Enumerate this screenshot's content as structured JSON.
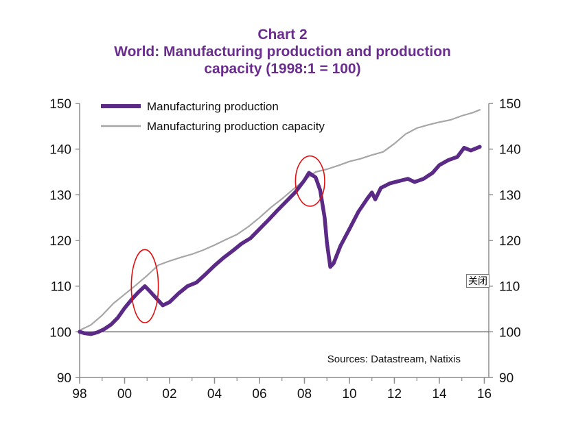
{
  "colors": {
    "title": "#6a2c8e",
    "production": "#5b2a86",
    "capacity": "#a6a6a6",
    "annotation": "#e01010",
    "axis": "#8c8c8c"
  },
  "close_button": {
    "label": "关闭"
  },
  "chart_data": {
    "type": "line",
    "title": "Chart 2",
    "subtitle": "World: Manufacturing production and production capacity (1998:1 = 100)",
    "title_lines": [
      "Chart 2",
      "World: Manufacturing production and production",
      "capacity (1998:1 = 100)"
    ],
    "xlabel": "",
    "ylabel": "",
    "xlim": [
      1998,
      2016.2
    ],
    "ylim": [
      90,
      150
    ],
    "x_ticks": [
      {
        "value": 1998,
        "label": "98"
      },
      {
        "value": 2000,
        "label": "00"
      },
      {
        "value": 2002,
        "label": "02"
      },
      {
        "value": 2004,
        "label": "04"
      },
      {
        "value": 2006,
        "label": "06"
      },
      {
        "value": 2008,
        "label": "08"
      },
      {
        "value": 2010,
        "label": "10"
      },
      {
        "value": 2012,
        "label": "12"
      },
      {
        "value": 2014,
        "label": "14"
      },
      {
        "value": 2016,
        "label": "16"
      }
    ],
    "y_ticks": [
      90,
      100,
      110,
      120,
      130,
      140,
      150
    ],
    "y_ticks_right": [
      90,
      100,
      110,
      120,
      130,
      140,
      150
    ],
    "reference_line": 100,
    "legend": {
      "position": "top-left"
    },
    "series": [
      {
        "name": "Manufacturing production",
        "points": [
          [
            1998.0,
            100.0
          ],
          [
            1998.2,
            99.7
          ],
          [
            1998.5,
            99.5
          ],
          [
            1998.8,
            99.9
          ],
          [
            1999.1,
            100.6
          ],
          [
            1999.4,
            101.6
          ],
          [
            1999.7,
            103.1
          ],
          [
            2000.0,
            105.2
          ],
          [
            2000.3,
            107.0
          ],
          [
            2000.6,
            108.6
          ],
          [
            2000.9,
            110.0
          ],
          [
            2001.1,
            109.0
          ],
          [
            2001.4,
            107.4
          ],
          [
            2001.7,
            105.8
          ],
          [
            2002.0,
            106.5
          ],
          [
            2002.4,
            108.4
          ],
          [
            2002.8,
            110.0
          ],
          [
            2003.2,
            110.8
          ],
          [
            2003.6,
            112.6
          ],
          [
            2004.0,
            114.5
          ],
          [
            2004.4,
            116.2
          ],
          [
            2004.8,
            117.7
          ],
          [
            2005.2,
            119.3
          ],
          [
            2005.6,
            120.5
          ],
          [
            2006.0,
            122.5
          ],
          [
            2006.4,
            124.5
          ],
          [
            2006.8,
            126.6
          ],
          [
            2007.2,
            128.6
          ],
          [
            2007.6,
            130.6
          ],
          [
            2008.0,
            133.2
          ],
          [
            2008.2,
            134.8
          ],
          [
            2008.5,
            133.8
          ],
          [
            2008.7,
            131.0
          ],
          [
            2008.9,
            125.0
          ],
          [
            2009.0,
            119.5
          ],
          [
            2009.15,
            114.2
          ],
          [
            2009.3,
            115.0
          ],
          [
            2009.6,
            118.8
          ],
          [
            2010.0,
            122.5
          ],
          [
            2010.4,
            126.3
          ],
          [
            2010.8,
            129.2
          ],
          [
            2011.0,
            130.5
          ],
          [
            2011.15,
            129.0
          ],
          [
            2011.4,
            131.5
          ],
          [
            2011.8,
            132.5
          ],
          [
            2012.2,
            133.0
          ],
          [
            2012.6,
            133.5
          ],
          [
            2012.9,
            132.8
          ],
          [
            2013.3,
            133.5
          ],
          [
            2013.7,
            134.8
          ],
          [
            2014.0,
            136.5
          ],
          [
            2014.4,
            137.6
          ],
          [
            2014.8,
            138.3
          ],
          [
            2015.1,
            140.3
          ],
          [
            2015.4,
            139.7
          ],
          [
            2015.8,
            140.5
          ]
        ]
      },
      {
        "name": "Manufacturing production capacity",
        "points": [
          [
            1998.0,
            100.3
          ],
          [
            1998.5,
            101.5
          ],
          [
            1999.0,
            103.6
          ],
          [
            1999.5,
            106.2
          ],
          [
            2000.0,
            108.2
          ],
          [
            2000.5,
            110.2
          ],
          [
            2001.0,
            112.3
          ],
          [
            2001.5,
            114.6
          ],
          [
            2002.0,
            115.5
          ],
          [
            2002.5,
            116.3
          ],
          [
            2003.0,
            117.0
          ],
          [
            2003.5,
            117.9
          ],
          [
            2004.0,
            119.0
          ],
          [
            2004.5,
            120.2
          ],
          [
            2005.0,
            121.3
          ],
          [
            2005.5,
            123.0
          ],
          [
            2006.0,
            125.0
          ],
          [
            2006.5,
            127.2
          ],
          [
            2007.0,
            129.1
          ],
          [
            2007.5,
            131.2
          ],
          [
            2008.0,
            133.2
          ],
          [
            2008.5,
            135.0
          ],
          [
            2009.0,
            135.6
          ],
          [
            2009.5,
            136.4
          ],
          [
            2010.0,
            137.3
          ],
          [
            2010.5,
            137.9
          ],
          [
            2011.0,
            138.7
          ],
          [
            2011.5,
            139.4
          ],
          [
            2012.0,
            141.2
          ],
          [
            2012.5,
            143.3
          ],
          [
            2013.0,
            144.6
          ],
          [
            2013.5,
            145.3
          ],
          [
            2014.0,
            145.9
          ],
          [
            2014.5,
            146.4
          ],
          [
            2015.0,
            147.3
          ],
          [
            2015.5,
            148.0
          ],
          [
            2015.8,
            148.6
          ]
        ]
      }
    ],
    "annotations": [
      {
        "type": "ellipse",
        "center": [
          2000.9,
          110.0
        ],
        "x_radius": 0.6,
        "y_radius": 8.0,
        "label": ""
      },
      {
        "type": "ellipse",
        "center": [
          2008.25,
          133.0
        ],
        "x_radius": 0.65,
        "y_radius": 5.5,
        "label": ""
      }
    ],
    "source": "Sources: Datastream, Natixis"
  }
}
